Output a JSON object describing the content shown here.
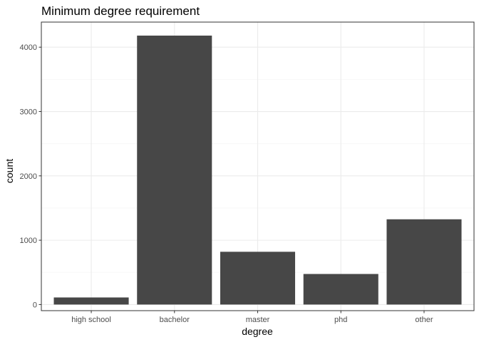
{
  "chart_data": {
    "type": "bar",
    "title": "Minimum degree requirement",
    "xlabel": "degree",
    "ylabel": "count",
    "categories": [
      "high school",
      "bachelor",
      "master",
      "phd",
      "other"
    ],
    "values": [
      110,
      4180,
      820,
      475,
      1325
    ],
    "ylim": [
      -95,
      4390
    ],
    "yticks": [
      0,
      1000,
      2000,
      3000,
      4000
    ],
    "grid": true,
    "theme": "bw",
    "bar_color": "#474747",
    "panel_border_color": "#333333",
    "grid_major_color": "#ebebeb",
    "grid_minor_color": "#f5f5f5"
  }
}
